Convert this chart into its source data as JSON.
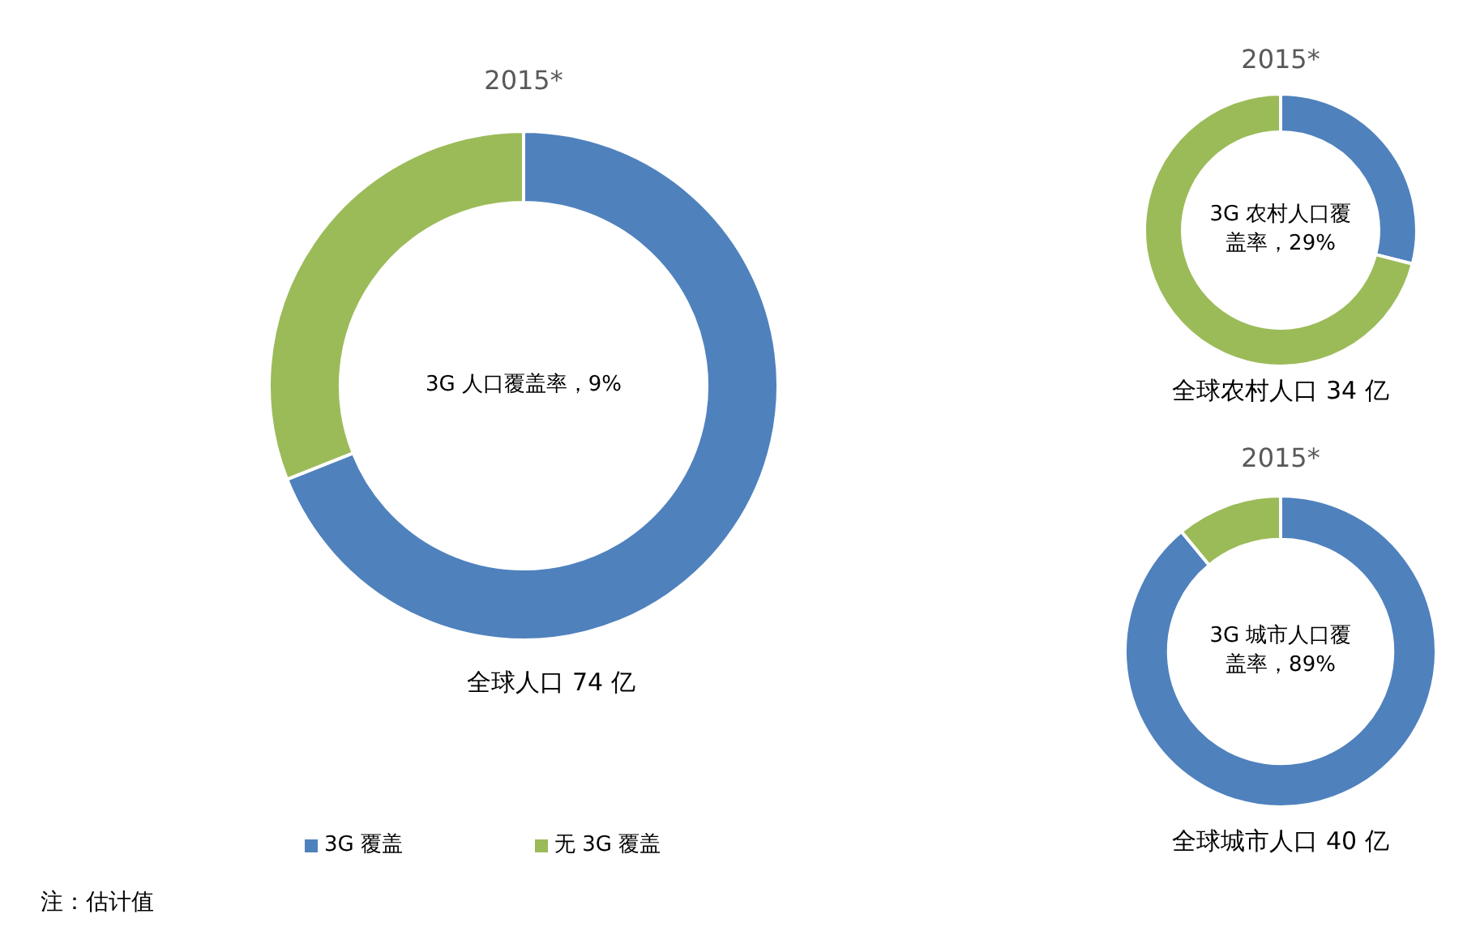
{
  "chart_data": [
    {
      "type": "donut",
      "title": "2015*",
      "categories": [
        "3G 覆盖",
        "无 3G 覆盖"
      ],
      "values": [
        69,
        31
      ],
      "colors": [
        "#4f81bd",
        "#9bbb59"
      ],
      "legend": "bottom",
      "annotations": [
        "3G 人口覆盖率，9%",
        "全球人口 74 亿",
        "注：估计值"
      ]
    },
    {
      "type": "donut",
      "title": "2015*",
      "categories": [
        null,
        null
      ],
      "values": [
        29,
        71
      ],
      "colors": [
        "#4f81bd",
        "#9bbb59"
      ],
      "annotations": [
        "3G 农村人口覆盖率，29%",
        "全球农村人口 34 亿"
      ]
    },
    {
      "type": "donut",
      "title": "2015*",
      "categories": [
        null,
        null
      ],
      "values": [
        89,
        11
      ],
      "colors": [
        "#4f81bd",
        "#9bbb59"
      ],
      "annotations": [
        "3G 城市人口覆盖率，89%",
        "全球城市人口 40 亿"
      ]
    }
  ]
}
